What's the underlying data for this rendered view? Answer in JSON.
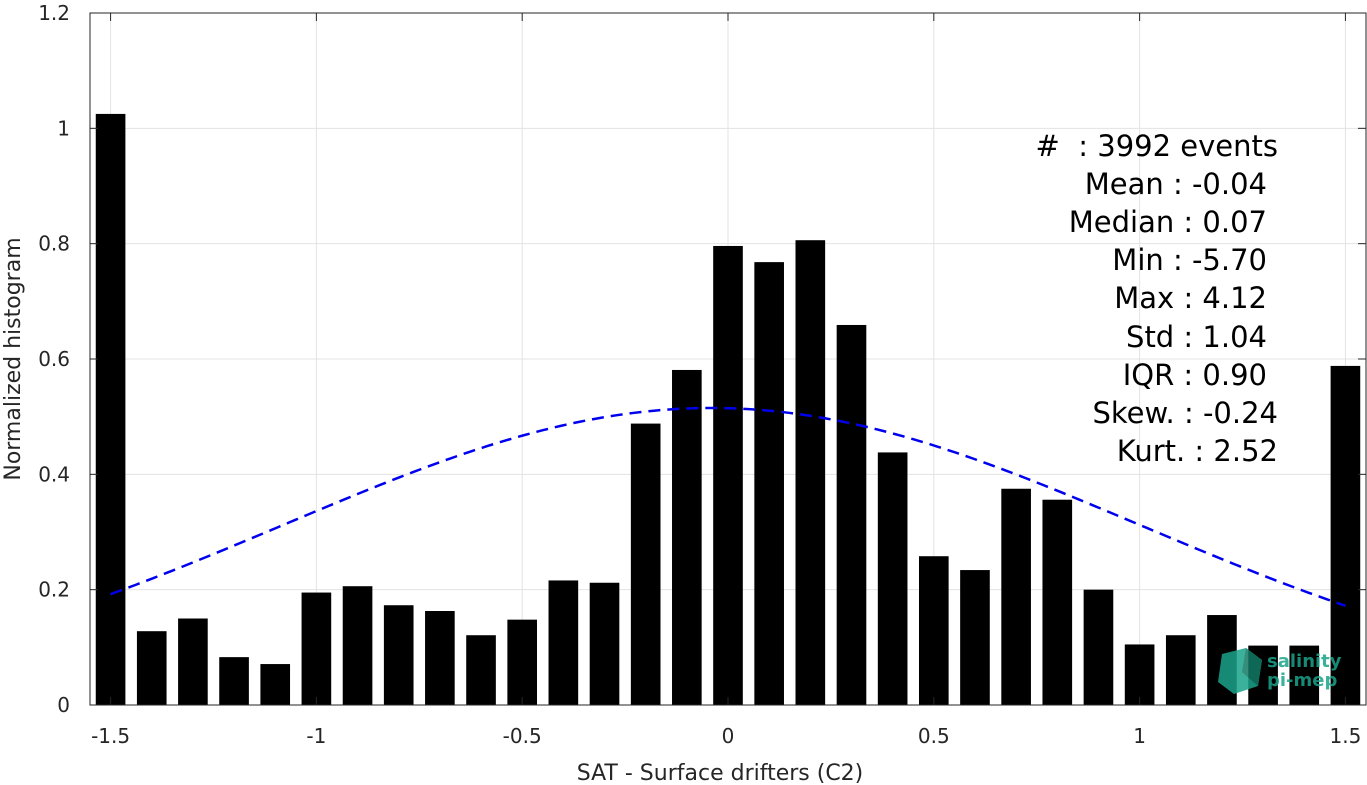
{
  "chart_data": {
    "type": "bar",
    "title": "",
    "xlabel": "SAT - Surface drifters (C2)",
    "ylabel": "Normalized histogram",
    "xlim": [
      -1.55,
      1.55
    ],
    "ylim": [
      0,
      1.2
    ],
    "grid": true,
    "x_ticks": [
      -1.5,
      -1,
      -0.5,
      0,
      0.5,
      1,
      1.5
    ],
    "x_tick_labels": [
      "-1.5",
      "-1",
      "-0.5",
      "0",
      "0.5",
      "1",
      "1.5"
    ],
    "y_ticks": [
      0,
      0.2,
      0.4,
      0.6,
      0.8,
      1,
      1.2
    ],
    "y_tick_labels": [
      "0",
      "0.2",
      "0.4",
      "0.6",
      "0.8",
      "1",
      "1.2"
    ],
    "bar_color": "#000000",
    "bins": [
      -1.5,
      -1.4,
      -1.3,
      -1.2,
      -1.1,
      -1.0,
      -0.9,
      -0.8,
      -0.7,
      -0.6,
      -0.5,
      -0.4,
      -0.3,
      -0.2,
      -0.1,
      0.0,
      0.1,
      0.2,
      0.3,
      0.4,
      0.5,
      0.6,
      0.7,
      0.8,
      0.9,
      1.0,
      1.1,
      1.2,
      1.3,
      1.4,
      1.5
    ],
    "values": [
      1.025,
      0.128,
      0.15,
      0.083,
      0.071,
      0.195,
      0.206,
      0.173,
      0.163,
      0.121,
      0.148,
      0.216,
      0.212,
      0.488,
      0.581,
      0.796,
      0.768,
      0.806,
      0.659,
      0.438,
      0.258,
      0.234,
      0.375,
      0.356,
      0.2,
      0.105,
      0.121,
      0.156,
      0.103,
      0.103,
      0.588
    ],
    "gaussian_fit": {
      "mean": -0.04,
      "std": 1.04,
      "peak": 0.515,
      "x_range": [
        -1.5,
        1.5
      ],
      "color": "#0000ee",
      "style": "dashed"
    },
    "annotation": [
      "#  : 3992 events",
      "Mean : -0.04",
      "Median : 0.07",
      "Min : -5.70",
      "Max : 4.12",
      "Std : 1.04",
      "IQR : 0.90",
      "Skew. : -0.24",
      "Kurt. : 2.52"
    ]
  },
  "logo": {
    "line1": "salinity",
    "line2": "pi-mep",
    "color": "#1aa389"
  }
}
